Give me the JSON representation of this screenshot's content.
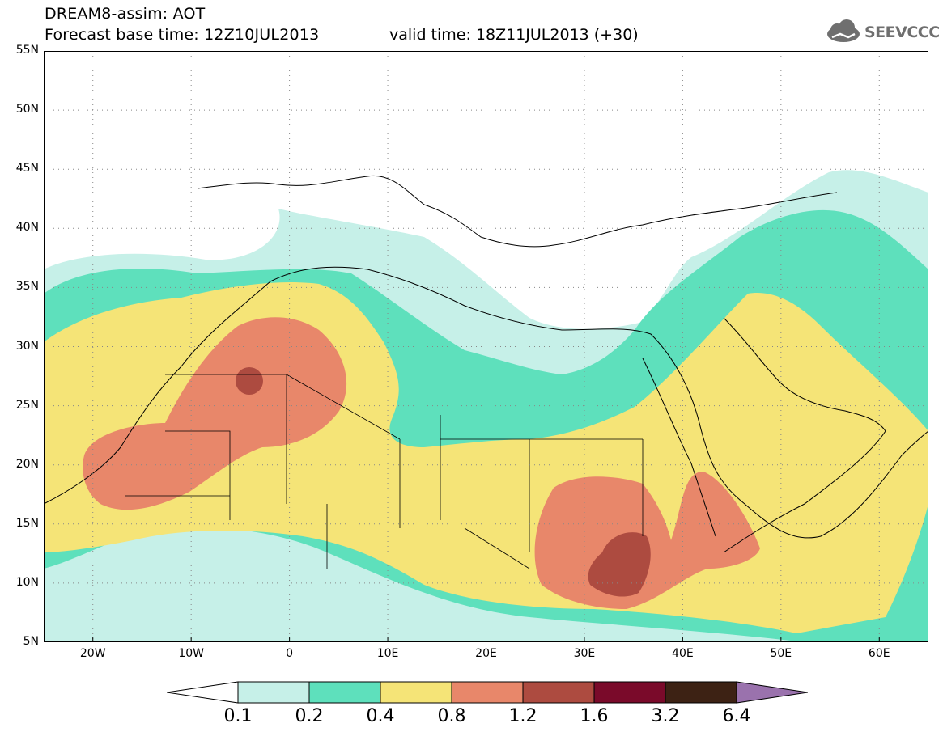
{
  "header": {
    "title": "DREAM8-assim: AOT",
    "base_time": "Forecast base time: 12Z10JUL2013",
    "valid_time": "valid time: 18Z11JUL2013 (+30)"
  },
  "logo": {
    "text": "SEEVCCC",
    "icon": "cloud-logo-icon",
    "color": "#6f6f6f"
  },
  "map": {
    "projection": "lat-lon",
    "lon_range": [
      -25,
      65
    ],
    "lat_range": [
      5,
      55
    ],
    "lat_ticks": [
      "5N",
      "10N",
      "15N",
      "20N",
      "25N",
      "30N",
      "35N",
      "40N",
      "45N",
      "50N",
      "55N"
    ],
    "lon_ticks": [
      "20W",
      "10W",
      "0",
      "10E",
      "20E",
      "30E",
      "40E",
      "50E",
      "60E"
    ],
    "grid": "dotted",
    "variable": "Aerosol optical thickness (AOT)"
  },
  "colorbar": {
    "labels": [
      "0.1",
      "0.2",
      "0.4",
      "0.8",
      "1.2",
      "1.6",
      "3.2",
      "6.4"
    ],
    "colors": [
      "#ffffff",
      "#c6f0e8",
      "#5ee0bc",
      "#f5e477",
      "#e8876a",
      "#ad4b40",
      "#7a0a2a",
      "#3d2214",
      "#9a72ad"
    ]
  }
}
